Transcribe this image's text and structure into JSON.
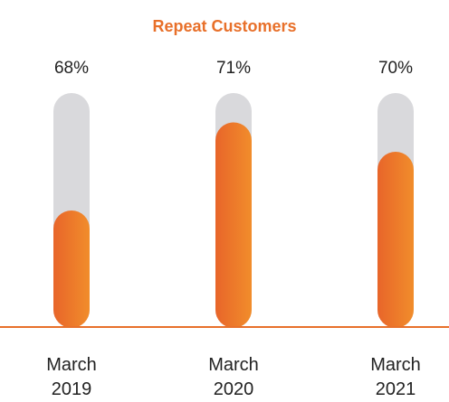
{
  "chart_data": {
    "type": "bar",
    "title": "Repeat Customers",
    "categories": [
      "March 2019",
      "March 2020",
      "March 2021"
    ],
    "values": [
      68,
      71,
      70
    ],
    "value_labels": [
      "68%",
      "71%",
      "70%"
    ],
    "color": "#ec7a2a",
    "track_color": "#d9d9dc",
    "ylim": [
      64,
      72
    ]
  }
}
